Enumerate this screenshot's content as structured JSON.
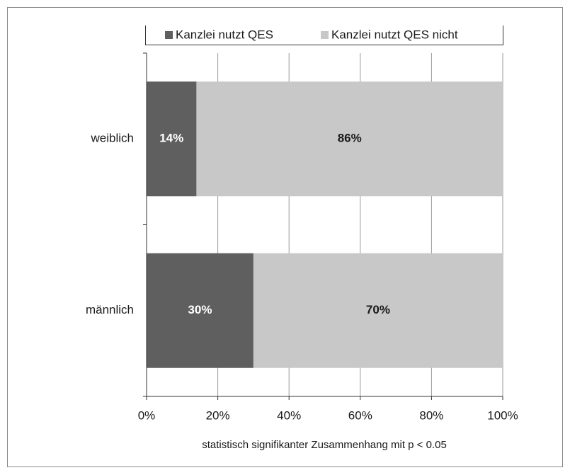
{
  "chart_data": {
    "type": "stacked_bar_horizontal",
    "categories": [
      "weiblich",
      "männlich"
    ],
    "series": [
      {
        "name": "Kanzlei nutzt QES",
        "color": "#5f5f5f",
        "values": [
          14,
          30
        ],
        "value_labels": [
          "14%",
          "30%"
        ]
      },
      {
        "name": "Kanzlei nutzt QES nicht",
        "color": "#c8c8c8",
        "values": [
          86,
          70
        ],
        "value_labels": [
          "86%",
          "70%"
        ]
      }
    ],
    "xlim": [
      0,
      100
    ],
    "xticks": [
      {
        "value": 0,
        "label": "0%"
      },
      {
        "value": 20,
        "label": "20%"
      },
      {
        "value": 40,
        "label": "40%"
      },
      {
        "value": 60,
        "label": "60%"
      },
      {
        "value": 80,
        "label": "80%"
      },
      {
        "value": 100,
        "label": "100%"
      }
    ],
    "xlabel": "statistisch signifikanter Zusammenhang mit p < 0.05",
    "grid": true,
    "legend": "top"
  }
}
